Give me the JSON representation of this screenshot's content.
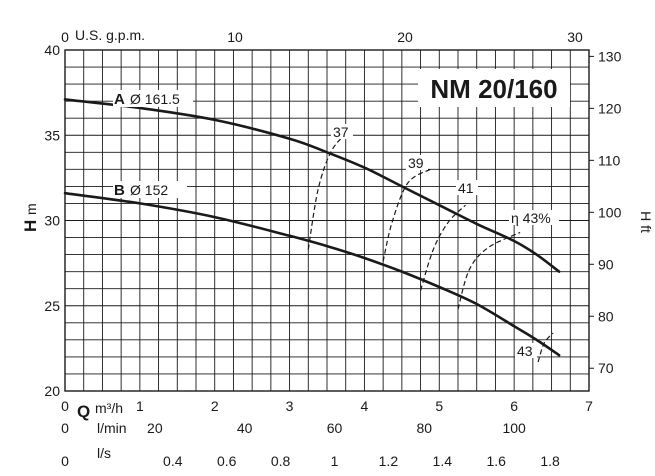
{
  "chart_data": {
    "type": "line",
    "title": "NM 20/160",
    "x_axes": {
      "q_m3h": {
        "symbol": "Q",
        "unit": "m³/h",
        "range": [
          0,
          7
        ],
        "ticks": [
          0,
          1,
          2,
          3,
          4,
          5,
          6,
          7
        ]
      },
      "usgpm": {
        "label": "U.S. g.p.m.",
        "range": [
          0,
          30.82
        ],
        "ticks": [
          0,
          10,
          20,
          30
        ]
      },
      "lmin": {
        "label": "l/min",
        "range": [
          0,
          116.67
        ],
        "ticks": [
          0,
          20,
          40,
          60,
          80,
          100
        ]
      },
      "ls": {
        "label": "l/s",
        "range": [
          0,
          1.9444
        ],
        "ticks": [
          0,
          0.4,
          0.6,
          0.8,
          1,
          1.2,
          1.4,
          1.6,
          1.8
        ]
      }
    },
    "y_axes": {
      "h_m": {
        "symbol": "H",
        "unit": "m",
        "range": [
          20,
          40
        ],
        "ticks": [
          20,
          25,
          30,
          35,
          40
        ]
      },
      "h_ft": {
        "label": "H ft",
        "range": [
          65.62,
          131.23
        ],
        "ticks": [
          70,
          80,
          90,
          100,
          110,
          120,
          130
        ]
      }
    },
    "grid": true,
    "series": [
      {
        "name": "A",
        "label_suffix": "Ø 161.5",
        "x": [
          0,
          1,
          2,
          3,
          3.5,
          4,
          4.5,
          5,
          5.5,
          6,
          6.3,
          6.6
        ],
        "y": [
          37.1,
          36.6,
          35.9,
          34.8,
          34.0,
          33.1,
          32.0,
          30.9,
          29.8,
          28.8,
          28.0,
          27.0
        ]
      },
      {
        "name": "B",
        "label_suffix": "Ø 152",
        "x": [
          0,
          1,
          2,
          3,
          3.5,
          4,
          4.5,
          5,
          5.5,
          6,
          6.3,
          6.6
        ],
        "y": [
          31.6,
          31.0,
          30.2,
          29.1,
          28.5,
          27.8,
          27.0,
          26.1,
          25.1,
          23.8,
          23.0,
          22.1
        ]
      }
    ],
    "efficiency_curves": [
      {
        "label": "37",
        "x": [
          3.25,
          3.38,
          3.55,
          3.75
        ],
        "y": [
          28.3,
          31.8,
          34.0,
          35.1
        ]
      },
      {
        "label": "39",
        "x": [
          4.25,
          4.37,
          4.58,
          4.88
        ],
        "y": [
          27.6,
          29.9,
          32.2,
          33.0
        ]
      },
      {
        "label": "41",
        "x": [
          4.75,
          4.92,
          5.12,
          5.35
        ],
        "y": [
          25.9,
          28.3,
          29.9,
          30.9
        ]
      },
      {
        "label": "η 43%",
        "x": [
          5.25,
          5.4,
          5.65,
          6.08
        ],
        "y": [
          24.8,
          27.1,
          28.4,
          29.3
        ]
      },
      {
        "label": "43",
        "x": [
          6.32,
          6.4,
          6.52
        ],
        "y": [
          21.7,
          22.8,
          23.4
        ]
      }
    ]
  }
}
